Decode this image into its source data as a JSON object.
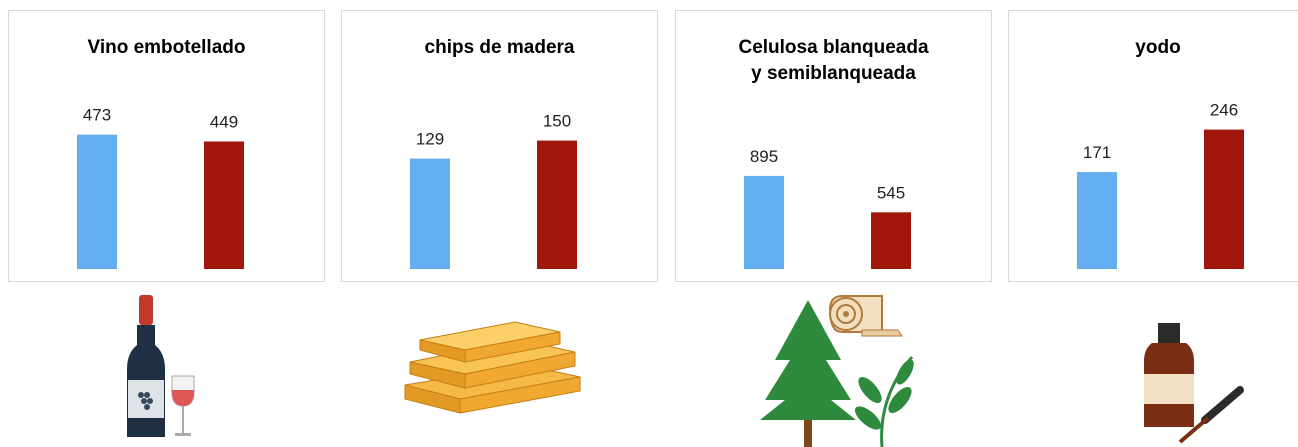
{
  "chart_data": [
    {
      "type": "bar",
      "title": "Vino embotellado",
      "categories": [
        null,
        null
      ],
      "values": [
        473,
        449
      ],
      "colors": [
        "#64aef0",
        "#a0160a"
      ],
      "ylim": [
        0,
        500
      ]
    },
    {
      "type": "bar",
      "title": "chips de madera",
      "categories": [
        null,
        null
      ],
      "values": [
        129,
        150
      ],
      "colors": [
        "#64aef0",
        "#a0160a"
      ],
      "ylim": [
        0,
        160
      ]
    },
    {
      "type": "bar",
      "title": "Celulosa blanqueada y semiblanqueada",
      "categories": [
        null,
        null
      ],
      "values": [
        895,
        545
      ],
      "colors": [
        "#64aef0",
        "#a0160a"
      ],
      "ylim": [
        0,
        1000
      ]
    },
    {
      "type": "bar",
      "title": "yodo",
      "categories": [
        null,
        null
      ],
      "values": [
        171,
        246
      ],
      "colors": [
        "#64aef0",
        "#a0160a"
      ],
      "ylim": [
        0,
        300
      ]
    }
  ]
}
